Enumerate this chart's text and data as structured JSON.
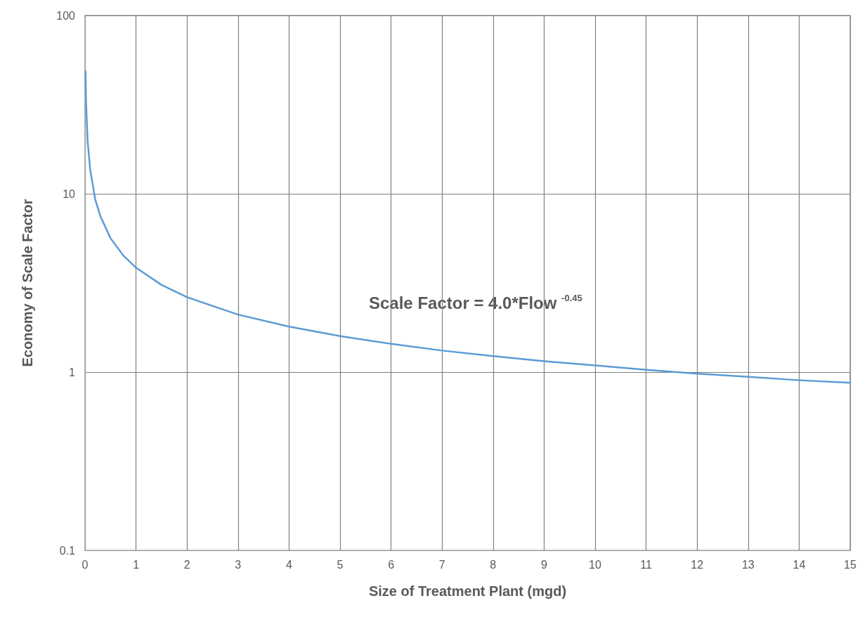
{
  "chart_data": {
    "type": "line",
    "xlabel": "Size of Treatment Plant (mgd)",
    "ylabel": "Economy of Scale Factor",
    "annotations": [
      "Scale Factor = 4.0*Flow $^{-0.45}$"
    ],
    "series": [
      {
        "color": "#5b9bd5",
        "x": [
          0.01,
          0.02,
          0.05,
          0.1,
          0.2,
          0.3,
          0.5,
          0.75,
          1,
          1.5,
          2,
          3,
          4,
          5,
          6,
          7,
          8,
          9,
          10,
          11,
          12,
          13,
          14,
          15
        ],
        "values": [
          48.5,
          33.1,
          20.0,
          13.7,
          9.3,
          7.5,
          5.63,
          4.51,
          3.85,
          3.08,
          2.63,
          2.1,
          1.8,
          1.59,
          1.44,
          1.32,
          1.23,
          1.15,
          1.09,
          1.03,
          0.98,
          0.94,
          0.9,
          0.87
        ]
      }
    ],
    "xlim": [
      0,
      15
    ],
    "xticks": [
      0,
      1,
      2,
      3,
      4,
      5,
      6,
      7,
      8,
      9,
      10,
      11,
      12,
      13,
      14,
      15
    ],
    "ylim": [
      0.1,
      100
    ],
    "yticks": [
      0.1,
      1,
      10,
      100
    ],
    "log": "y",
    "grid": true,
    "marker": "none",
    "line_style": "solid"
  }
}
